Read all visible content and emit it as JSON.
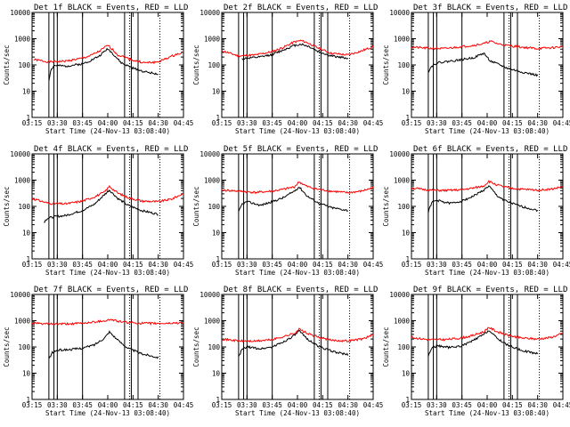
{
  "colors": {
    "events": "#000000",
    "lld": "#ff0000",
    "background": "#ffffff"
  },
  "chart_data": [
    {
      "type": "line",
      "title": "Det 1f BLACK = Events, RED = LLD",
      "xlabel": "Start Time (24-Nov-13 03:08:40)",
      "ylabel": "Counts/sec",
      "yscale": "log",
      "ylim": [
        1,
        10000
      ],
      "yticks": [
        "1",
        "10",
        "100",
        "1000",
        "10000"
      ],
      "xticks": [
        "03:15",
        "03:30",
        "03:45",
        "04:00",
        "04:15",
        "04:30",
        "04:45"
      ],
      "xlim": [
        "03:15",
        "04:45"
      ],
      "solid_markers": [
        "03:25",
        "03:28",
        "03:30",
        "03:45",
        "04:10",
        "04:14",
        "04:18"
      ],
      "dotted_markers": [
        "04:13",
        "04:31"
      ],
      "series": [
        {
          "color": "#ff0000",
          "x": [
            "03:16",
            "03:25",
            "03:35",
            "03:45",
            "03:50",
            "03:55",
            "04:00",
            "04:03",
            "04:06",
            "04:10",
            "04:15",
            "04:22",
            "04:30",
            "04:36",
            "04:44"
          ],
          "values": [
            160,
            130,
            140,
            180,
            230,
            330,
            560,
            380,
            240,
            200,
            150,
            120,
            130,
            190,
            300
          ]
        },
        {
          "color": "#000000",
          "x": [
            "03:25",
            "03:26",
            "03:28",
            "03:35",
            "03:45",
            "03:50",
            "03:55",
            "04:00",
            "04:04",
            "04:08",
            "04:15",
            "04:22",
            "04:30"
          ],
          "values": [
            25,
            60,
            95,
            90,
            110,
            150,
            220,
            420,
            230,
            120,
            75,
            55,
            45
          ]
        }
      ]
    },
    {
      "type": "line",
      "title": "Det 2f BLACK = Events, RED = LLD",
      "xlabel": "Start Time (24-Nov-13 03:08:40)",
      "ylabel": "Counts/sec",
      "yscale": "log",
      "ylim": [
        1,
        10000
      ],
      "yticks": [
        "1",
        "10",
        "100",
        "1000",
        "10000"
      ],
      "xticks": [
        "03:15",
        "03:30",
        "03:45",
        "04:00",
        "04:15",
        "04:30",
        "04:45"
      ],
      "xlim": [
        "03:15",
        "04:45"
      ],
      "solid_markers": [
        "03:25",
        "03:28",
        "03:30",
        "03:45",
        "04:10",
        "04:14",
        "04:18"
      ],
      "dotted_markers": [
        "04:13",
        "04:31"
      ],
      "series": [
        {
          "color": "#ff0000",
          "x": [
            "03:15",
            "03:25",
            "03:35",
            "03:45",
            "03:52",
            "03:58",
            "04:02",
            "04:06",
            "04:12",
            "04:20",
            "04:30",
            "04:38",
            "04:45"
          ],
          "values": [
            350,
            220,
            240,
            320,
            480,
            750,
            850,
            700,
            450,
            280,
            240,
            340,
            500
          ]
        },
        {
          "color": "#000000",
          "x": [
            "03:27",
            "03:30",
            "03:38",
            "03:45",
            "03:52",
            "03:58",
            "04:02",
            "04:07",
            "04:12",
            "04:20",
            "04:30"
          ],
          "values": [
            170,
            180,
            200,
            250,
            380,
            550,
            620,
            500,
            330,
            220,
            180
          ]
        }
      ]
    },
    {
      "type": "line",
      "title": "Det 3f BLACK = Events, RED = LLD",
      "xlabel": "Start Time (24-Nov-13 03:08:40)",
      "ylabel": "Counts/sec",
      "yscale": "log",
      "ylim": [
        1,
        10000
      ],
      "yticks": [
        "1",
        "10",
        "100",
        "1000",
        "10000"
      ],
      "xticks": [
        "03:15",
        "03:30",
        "03:45",
        "04:00",
        "04:15",
        "04:30",
        "04:45"
      ],
      "xlim": [
        "03:15",
        "04:45"
      ],
      "solid_markers": [
        "03:25",
        "03:28",
        "03:30",
        "03:45",
        "04:10",
        "04:14",
        "04:18"
      ],
      "dotted_markers": [
        "04:13",
        "04:31"
      ],
      "series": [
        {
          "color": "#ff0000",
          "x": [
            "03:15",
            "03:25",
            "03:35",
            "03:45",
            "03:52",
            "03:58",
            "04:02",
            "04:06",
            "04:12",
            "04:20",
            "04:30",
            "04:38",
            "04:45"
          ],
          "values": [
            480,
            430,
            420,
            500,
            560,
            650,
            800,
            650,
            550,
            480,
            420,
            450,
            500
          ]
        },
        {
          "color": "#000000",
          "x": [
            "03:25",
            "03:27",
            "03:30",
            "03:38",
            "03:45",
            "03:52",
            "03:58",
            "04:02",
            "04:06",
            "04:12",
            "04:20",
            "04:30"
          ],
          "values": [
            55,
            90,
            120,
            140,
            160,
            190,
            280,
            140,
            110,
            75,
            55,
            40
          ]
        }
      ]
    },
    {
      "type": "line",
      "title": "Det 4f BLACK = Events, RED = LLD",
      "xlabel": "Start Time (24-Nov-13 03:08:40)",
      "ylabel": "Counts/sec",
      "yscale": "log",
      "ylim": [
        1,
        10000
      ],
      "yticks": [
        "1",
        "10",
        "100",
        "1000",
        "10000"
      ],
      "xticks": [
        "03:15",
        "03:30",
        "03:45",
        "04:00",
        "04:15",
        "04:30",
        "04:45"
      ],
      "xlim": [
        "03:15",
        "04:45"
      ],
      "solid_markers": [
        "03:25",
        "03:28",
        "03:30",
        "03:45",
        "04:10",
        "04:14",
        "04:18"
      ],
      "dotted_markers": [
        "04:13",
        "04:31"
      ],
      "series": [
        {
          "color": "#ff0000",
          "x": [
            "03:15",
            "03:25",
            "03:35",
            "03:45",
            "03:52",
            "03:58",
            "04:01",
            "04:06",
            "04:12",
            "04:20",
            "04:30",
            "04:38",
            "04:45"
          ],
          "values": [
            200,
            130,
            125,
            160,
            230,
            350,
            580,
            320,
            220,
            160,
            150,
            190,
            310
          ]
        },
        {
          "color": "#000000",
          "x": [
            "03:22",
            "03:24",
            "03:28",
            "03:35",
            "03:45",
            "03:52",
            "03:58",
            "04:01",
            "04:06",
            "04:12",
            "04:20",
            "04:30"
          ],
          "values": [
            25,
            35,
            40,
            45,
            70,
            120,
            280,
            420,
            200,
            110,
            70,
            50
          ]
        }
      ]
    },
    {
      "type": "line",
      "title": "Det 5f BLACK = Events, RED = LLD",
      "xlabel": "Start Time (24-Nov-13 03:08:40)",
      "ylabel": "Counts/sec",
      "yscale": "log",
      "ylim": [
        1,
        10000
      ],
      "yticks": [
        "1",
        "10",
        "100",
        "1000",
        "10000"
      ],
      "xticks": [
        "03:15",
        "03:30",
        "03:45",
        "04:00",
        "04:15",
        "04:30",
        "04:45"
      ],
      "xlim": [
        "03:15",
        "04:45"
      ],
      "solid_markers": [
        "03:25",
        "03:28",
        "03:30",
        "03:45",
        "04:10",
        "04:14",
        "04:18"
      ],
      "dotted_markers": [
        "04:13",
        "04:31"
      ],
      "series": [
        {
          "color": "#ff0000",
          "x": [
            "03:15",
            "03:25",
            "03:35",
            "03:45",
            "03:52",
            "03:58",
            "04:01",
            "04:06",
            "04:12",
            "04:20",
            "04:30",
            "04:38",
            "04:45"
          ],
          "values": [
            420,
            380,
            340,
            380,
            450,
            550,
            850,
            560,
            450,
            380,
            330,
            380,
            520
          ]
        },
        {
          "color": "#000000",
          "x": [
            "03:25",
            "03:27",
            "03:30",
            "03:38",
            "03:45",
            "03:52",
            "03:58",
            "04:01",
            "04:06",
            "04:12",
            "04:20",
            "04:30"
          ],
          "values": [
            60,
            120,
            150,
            110,
            150,
            220,
            380,
            550,
            240,
            140,
            90,
            70
          ]
        }
      ]
    },
    {
      "type": "line",
      "title": "Det 6f BLACK = Events, RED = LLD",
      "xlabel": "Start Time (24-Nov-13 03:08:40)",
      "ylabel": "Counts/sec",
      "yscale": "log",
      "ylim": [
        1,
        10000
      ],
      "yticks": [
        "1",
        "10",
        "100",
        "1000",
        "10000"
      ],
      "xticks": [
        "03:15",
        "03:30",
        "03:45",
        "04:00",
        "04:15",
        "04:30",
        "04:45"
      ],
      "xlim": [
        "03:15",
        "04:45"
      ],
      "solid_markers": [
        "03:25",
        "03:28",
        "03:30",
        "03:45",
        "04:10",
        "04:14",
        "04:18"
      ],
      "dotted_markers": [
        "04:13",
        "04:31"
      ],
      "series": [
        {
          "color": "#ff0000",
          "x": [
            "03:15",
            "03:25",
            "03:35",
            "03:45",
            "03:52",
            "03:58",
            "04:01",
            "04:06",
            "04:12",
            "04:20",
            "04:30",
            "04:38",
            "04:45"
          ],
          "values": [
            500,
            420,
            400,
            430,
            500,
            600,
            900,
            650,
            520,
            450,
            420,
            450,
            560
          ]
        },
        {
          "color": "#000000",
          "x": [
            "03:25",
            "03:27",
            "03:30",
            "03:38",
            "03:45",
            "03:52",
            "03:58",
            "04:01",
            "04:06",
            "04:12",
            "04:20",
            "04:30"
          ],
          "values": [
            60,
            140,
            170,
            130,
            160,
            250,
            420,
            600,
            250,
            150,
            100,
            70
          ]
        }
      ]
    },
    {
      "type": "line",
      "title": "Det 7f BLACK = Events, RED = LLD",
      "xlabel": "Start Time (24-Nov-13 03:08:40)",
      "ylabel": "Counts/sec",
      "yscale": "log",
      "ylim": [
        1,
        10000
      ],
      "yticks": [
        "1",
        "10",
        "100",
        "1000",
        "10000"
      ],
      "xticks": [
        "03:15",
        "03:30",
        "03:45",
        "04:00",
        "04:15",
        "04:30",
        "04:45"
      ],
      "xlim": [
        "03:15",
        "04:45"
      ],
      "solid_markers": [
        "03:25",
        "03:28",
        "03:30",
        "03:45",
        "04:10",
        "04:14",
        "04:18"
      ],
      "dotted_markers": [
        "04:13",
        "04:31"
      ],
      "series": [
        {
          "color": "#ff0000",
          "x": [
            "03:15",
            "03:25",
            "03:35",
            "03:45",
            "03:52",
            "03:58",
            "04:02",
            "04:06",
            "04:12",
            "04:20",
            "04:30",
            "04:38",
            "04:45"
          ],
          "values": [
            800,
            750,
            750,
            800,
            900,
            1000,
            1100,
            950,
            850,
            800,
            780,
            800,
            850
          ]
        },
        {
          "color": "#000000",
          "x": [
            "03:25",
            "03:27",
            "03:30",
            "03:38",
            "03:45",
            "03:52",
            "03:58",
            "04:01",
            "04:06",
            "04:12",
            "04:20",
            "04:30"
          ],
          "values": [
            35,
            60,
            75,
            80,
            90,
            120,
            220,
            380,
            180,
            90,
            55,
            40
          ]
        }
      ]
    },
    {
      "type": "line",
      "title": "Det 8f BLACK = Events, RED = LLD",
      "xlabel": "Start Time (24-Nov-13 03:08:40)",
      "ylabel": "Counts/sec",
      "yscale": "log",
      "ylim": [
        1,
        10000
      ],
      "yticks": [
        "1",
        "10",
        "100",
        "1000",
        "10000"
      ],
      "xticks": [
        "03:15",
        "03:30",
        "03:45",
        "04:00",
        "04:15",
        "04:30",
        "04:45"
      ],
      "xlim": [
        "03:15",
        "04:45"
      ],
      "solid_markers": [
        "03:25",
        "03:28",
        "03:30",
        "03:45",
        "04:10",
        "04:14",
        "04:18"
      ],
      "dotted_markers": [
        "04:13",
        "04:31"
      ],
      "series": [
        {
          "color": "#ff0000",
          "x": [
            "03:15",
            "03:25",
            "03:35",
            "03:45",
            "03:52",
            "03:58",
            "04:01",
            "04:06",
            "04:12",
            "04:20",
            "04:30",
            "04:38",
            "04:45"
          ],
          "values": [
            200,
            170,
            165,
            190,
            250,
            330,
            480,
            320,
            240,
            180,
            170,
            200,
            280
          ]
        },
        {
          "color": "#000000",
          "x": [
            "03:25",
            "03:27",
            "03:30",
            "03:38",
            "03:45",
            "03:52",
            "03:58",
            "04:01",
            "04:06",
            "04:12",
            "04:20",
            "04:30"
          ],
          "values": [
            40,
            80,
            100,
            85,
            100,
            160,
            270,
            400,
            200,
            110,
            70,
            50
          ]
        }
      ]
    },
    {
      "type": "line",
      "title": "Det 9f BLACK = Events, RED = LLD",
      "xlabel": "Start Time (24-Nov-13 03:08:40)",
      "ylabel": "Counts/sec",
      "yscale": "log",
      "ylim": [
        1,
        10000
      ],
      "yticks": [
        "1",
        "10",
        "100",
        "1000",
        "10000"
      ],
      "xticks": [
        "03:15",
        "03:30",
        "03:45",
        "04:00",
        "04:15",
        "04:30",
        "04:45"
      ],
      "xlim": [
        "03:15",
        "04:45"
      ],
      "solid_markers": [
        "03:25",
        "03:28",
        "03:30",
        "03:45",
        "04:10",
        "04:14",
        "04:18"
      ],
      "dotted_markers": [
        "04:13",
        "04:31"
      ],
      "series": [
        {
          "color": "#ff0000",
          "x": [
            "03:15",
            "03:25",
            "03:35",
            "03:45",
            "03:52",
            "03:58",
            "04:01",
            "04:06",
            "04:12",
            "04:20",
            "04:30",
            "04:38",
            "04:45"
          ],
          "values": [
            230,
            190,
            190,
            220,
            280,
            380,
            560,
            380,
            280,
            220,
            200,
            230,
            330
          ]
        },
        {
          "color": "#000000",
          "x": [
            "03:25",
            "03:27",
            "03:30",
            "03:38",
            "03:45",
            "03:52",
            "03:58",
            "04:01",
            "04:06",
            "04:12",
            "04:20",
            "04:30"
          ],
          "values": [
            45,
            90,
            110,
            95,
            110,
            180,
            300,
            430,
            210,
            120,
            75,
            55
          ]
        }
      ]
    }
  ]
}
